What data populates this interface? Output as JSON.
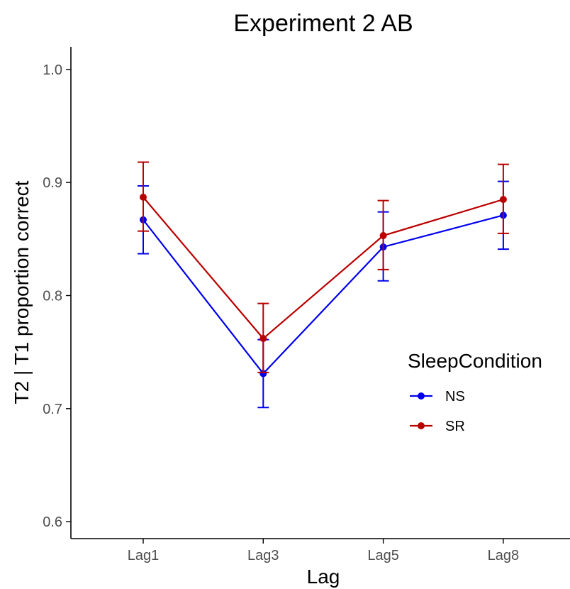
{
  "chart_data": {
    "type": "line",
    "title": "Experiment 2 AB",
    "xlabel": "Lag",
    "ylabel": "T2 | T1 proportion correct",
    "categories": [
      "Lag1",
      "Lag3",
      "Lag5",
      "Lag8"
    ],
    "ylim": [
      0.585,
      1.02
    ],
    "yticks": [
      0.6,
      0.7,
      0.8,
      0.9,
      1.0
    ],
    "ytick_labels": [
      "0.6",
      "0.7",
      "0.8",
      "0.9",
      "1.0"
    ],
    "grid": false,
    "legend": {
      "title": "SleepCondition",
      "position": "right"
    },
    "series": [
      {
        "name": "NS",
        "color": "#0000ee",
        "values": [
          0.867,
          0.731,
          0.843,
          0.871
        ],
        "err_low": [
          0.837,
          0.701,
          0.813,
          0.841
        ],
        "err_high": [
          0.897,
          0.761,
          0.874,
          0.901
        ]
      },
      {
        "name": "SR",
        "color": "#bb0000",
        "values": [
          0.887,
          0.762,
          0.853,
          0.885
        ],
        "err_low": [
          0.857,
          0.732,
          0.823,
          0.855
        ],
        "err_high": [
          0.918,
          0.793,
          0.884,
          0.916
        ]
      }
    ]
  }
}
